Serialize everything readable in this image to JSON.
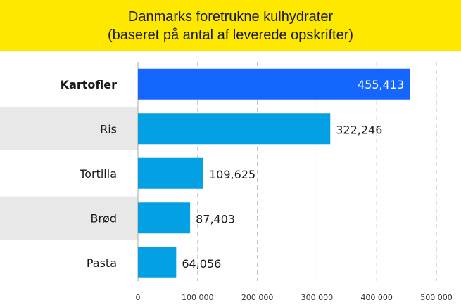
{
  "chart_data": {
    "type": "bar",
    "orientation": "horizontal",
    "title": "Danmarks foretrukne kulhydrater",
    "subtitle": "(baseret på antal af leverede opskrifter)",
    "categories": [
      "Kartofler",
      "Ris",
      "Tortilla",
      "Brød",
      "Pasta"
    ],
    "values": [
      455413,
      322246,
      109625,
      87403,
      64056
    ],
    "value_labels": [
      "455,413",
      "322,246",
      "109,625",
      "87,403",
      "64,056"
    ],
    "xlim": [
      0,
      500000
    ],
    "x_ticks": [
      0,
      100000,
      200000,
      300000,
      400000,
      500000
    ],
    "x_tick_labels": [
      "0",
      "100 000",
      "200 000",
      "300 000",
      "400 000",
      "500 000"
    ],
    "grid": "vertical dashed",
    "colors": {
      "highlight": "#1565ff",
      "bar": "#03a0e4",
      "header": "#ffe800",
      "row_band": "#e8e8e8"
    },
    "highlighted_category": "Kartofler"
  }
}
